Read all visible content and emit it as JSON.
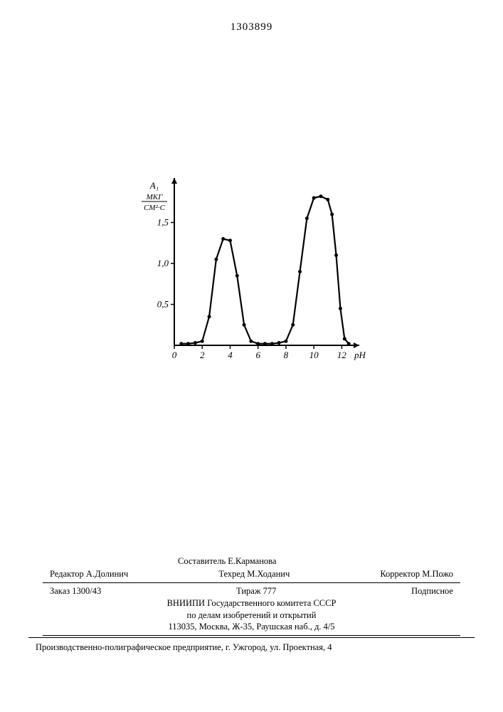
{
  "page_number": "1303899",
  "chart": {
    "type": "line",
    "y_axis_label_top": "A₁",
    "y_axis_unit_top": "МКГ",
    "y_axis_unit_bottom": "СМ²·C",
    "x_axis_label": "рН",
    "ylim": [
      0,
      2.0
    ],
    "xlim": [
      0,
      13
    ],
    "y_ticks": [
      0.5,
      1.0,
      1.5
    ],
    "y_tick_labels": [
      "0,5",
      "1,0",
      "1,5"
    ],
    "x_ticks": [
      0,
      2,
      4,
      6,
      8,
      10,
      12
    ],
    "x_tick_labels": [
      "0",
      "2",
      "4",
      "6",
      "8",
      "10",
      "12"
    ],
    "line_color": "#000000",
    "line_width": 2.2,
    "marker_color": "#000000",
    "marker_size": 2.5,
    "background_color": "#ffffff",
    "axis_color": "#000000",
    "axis_width": 2,
    "label_fontsize": 13,
    "tick_fontsize": 13,
    "data_points": [
      {
        "x": 0.5,
        "y": 0.02
      },
      {
        "x": 1.0,
        "y": 0.02
      },
      {
        "x": 1.5,
        "y": 0.03
      },
      {
        "x": 2.0,
        "y": 0.05
      },
      {
        "x": 2.5,
        "y": 0.35
      },
      {
        "x": 3.0,
        "y": 1.05
      },
      {
        "x": 3.5,
        "y": 1.3
      },
      {
        "x": 4.0,
        "y": 1.28
      },
      {
        "x": 4.5,
        "y": 0.85
      },
      {
        "x": 5.0,
        "y": 0.25
      },
      {
        "x": 5.5,
        "y": 0.05
      },
      {
        "x": 6.0,
        "y": 0.02
      },
      {
        "x": 6.5,
        "y": 0.02
      },
      {
        "x": 7.0,
        "y": 0.02
      },
      {
        "x": 7.5,
        "y": 0.03
      },
      {
        "x": 8.0,
        "y": 0.05
      },
      {
        "x": 8.5,
        "y": 0.25
      },
      {
        "x": 9.0,
        "y": 0.9
      },
      {
        "x": 9.5,
        "y": 1.55
      },
      {
        "x": 10.0,
        "y": 1.8
      },
      {
        "x": 10.5,
        "y": 1.82
      },
      {
        "x": 11.0,
        "y": 1.78
      },
      {
        "x": 11.3,
        "y": 1.6
      },
      {
        "x": 11.6,
        "y": 1.1
      },
      {
        "x": 11.9,
        "y": 0.45
      },
      {
        "x": 12.2,
        "y": 0.08
      },
      {
        "x": 12.5,
        "y": 0.02
      }
    ]
  },
  "footer": {
    "compiler_label": "Составитель",
    "compiler_name": "Е.Карманова",
    "editor_label": "Редактор",
    "editor_name": "А.Долинич",
    "techred_label": "Техред",
    "techred_name": "М.Ходанич",
    "corrector_label": "Корректор",
    "corrector_name": "М.Пожо",
    "order": "Заказ 1300/43",
    "tirage": "Тираж 777",
    "subscription": "Подписное",
    "org1": "ВНИИПИ Государственного комитета СССР",
    "org2": "по делам изобретений и открытий",
    "address": "113035, Москва, Ж-35, Раушская наб., д. 4/5"
  },
  "bottom": "Производственно-полиграфическое предприятие, г. Ужгород, ул. Проектная, 4"
}
